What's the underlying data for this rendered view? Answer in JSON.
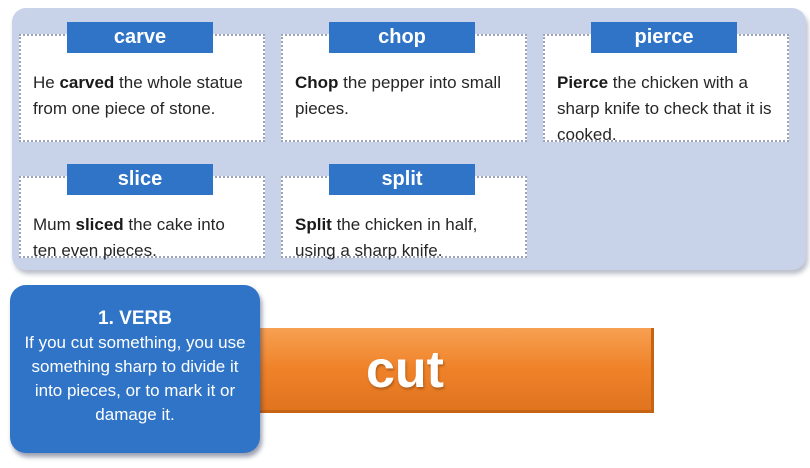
{
  "cards": [
    {
      "word": "carve",
      "pre": "He ",
      "bold": "carved",
      "post": " the whole statue from one piece of stone."
    },
    {
      "word": "chop",
      "pre": "",
      "bold": "Chop",
      "post": " the pepper into small pieces."
    },
    {
      "word": "pierce",
      "pre": "",
      "bold": "Pierce",
      "post": " the chicken with a sharp knife to check that it is cooked."
    },
    {
      "word": "slice",
      "pre": "Mum ",
      "bold": "sliced",
      "post": " the cake into ten even pieces."
    },
    {
      "word": "split",
      "pre": "",
      "bold": "Split",
      "post": " the chicken in half, using a sharp knife."
    }
  ],
  "headword": "cut",
  "definition": {
    "pos": "1. VERB",
    "text": "If you cut something, you use something sharp to divide it into pieces, or to mark it or damage it."
  }
}
